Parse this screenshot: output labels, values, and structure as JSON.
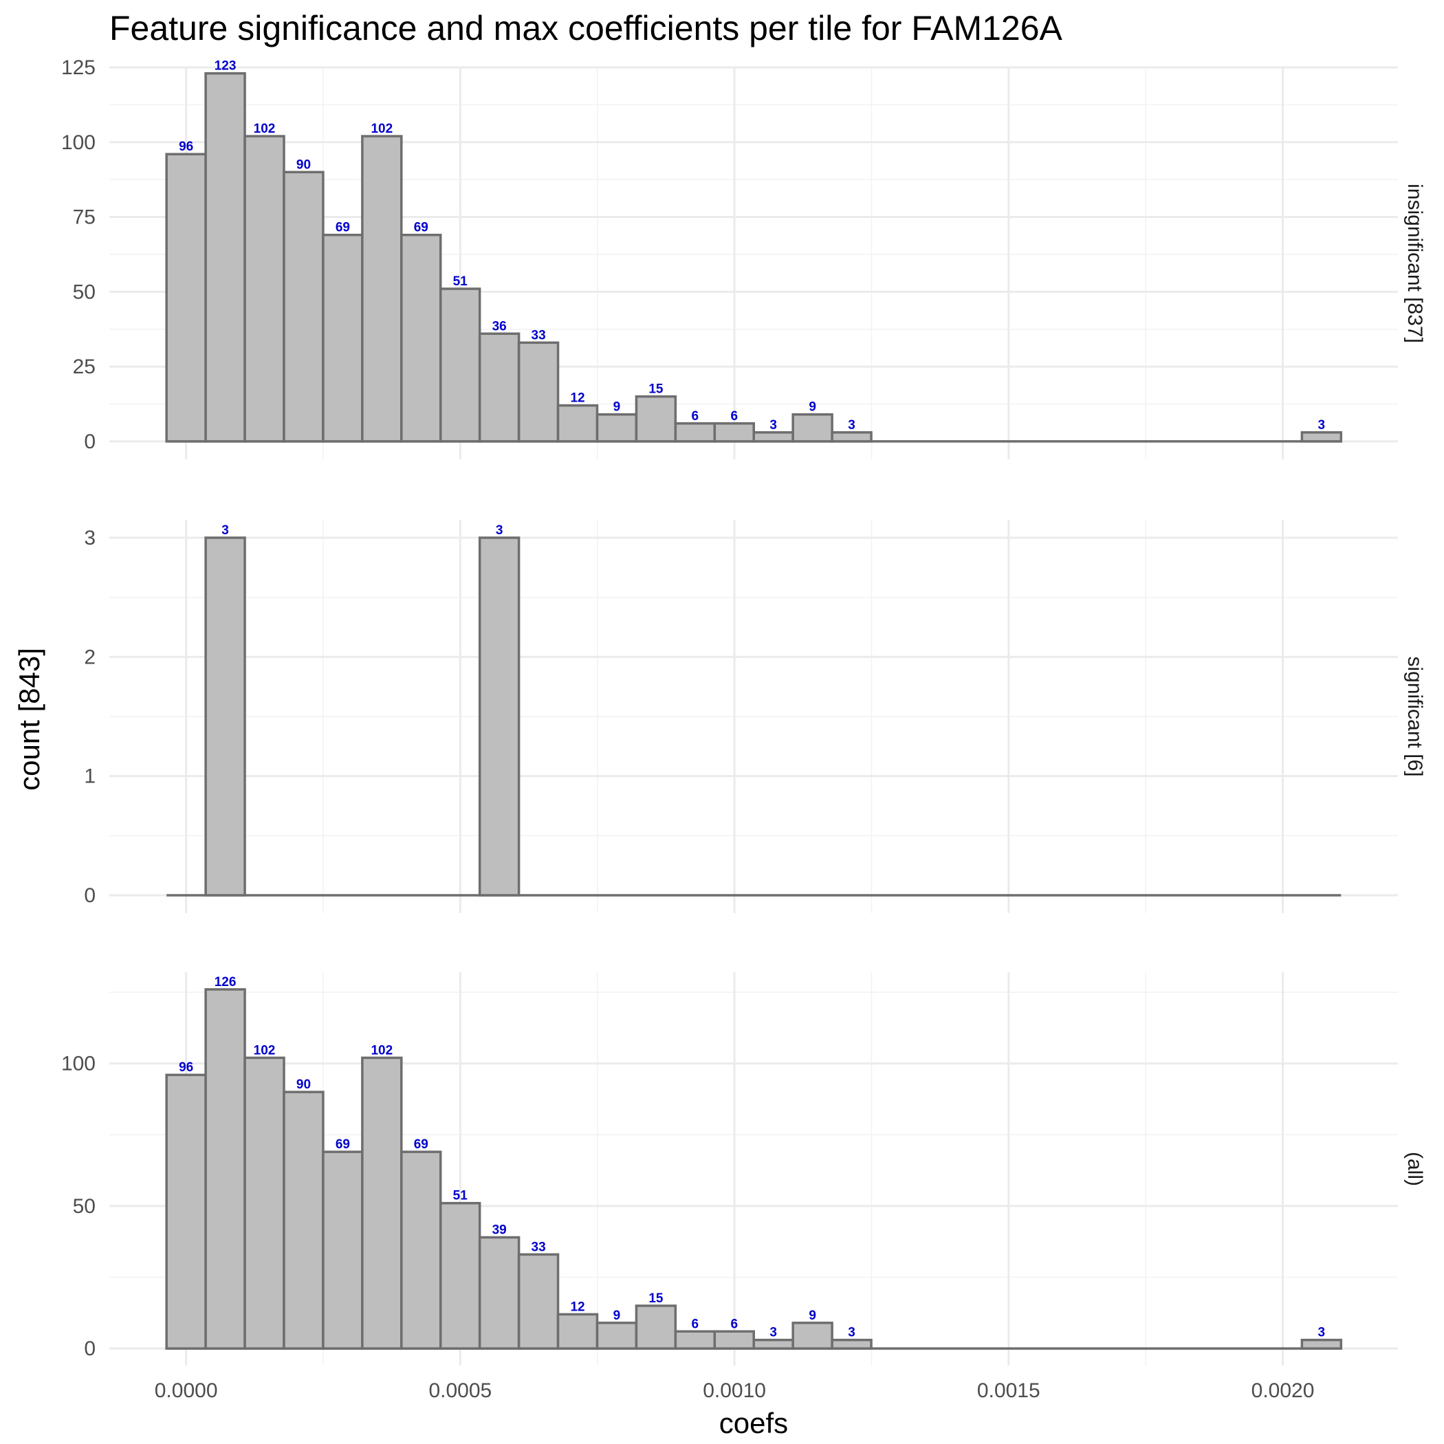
{
  "chart_data": {
    "type": "bar",
    "title": "Feature significance and max coefficients per tile for FAM126A",
    "xlabel": "coefs",
    "ylabel": "count [843]",
    "x_ticks": [
      "0.0000",
      "0.0005",
      "0.0010",
      "0.0015",
      "0.0020"
    ],
    "x_tick_values": [
      0,
      0.0005,
      0.001,
      0.0015,
      0.002
    ],
    "xlim": [
      -0.00014,
      0.00221
    ],
    "bin_width": 7.14e-05,
    "bin_start": -3.57e-05,
    "grid": true,
    "label_color": "#0000cc",
    "bar_fill": "#bebebe",
    "bar_stroke": "#6e6e6e",
    "panels": [
      {
        "strip_label": "insignificant [837]",
        "ylim": [
          -6,
          125
        ],
        "y_ticks": [
          0,
          25,
          50,
          75,
          100,
          125
        ],
        "y_tick_labels": [
          "0",
          "25",
          "50",
          "75",
          "100",
          "125"
        ],
        "y_minor": [
          12.5,
          37.5,
          62.5,
          87.5,
          112.5
        ],
        "bins": [
          {
            "index": 0,
            "value": 96,
            "label": "96"
          },
          {
            "index": 1,
            "value": 123,
            "label": "123"
          },
          {
            "index": 2,
            "value": 102,
            "label": "102"
          },
          {
            "index": 3,
            "value": 90,
            "label": "90"
          },
          {
            "index": 4,
            "value": 69,
            "label": "69"
          },
          {
            "index": 5,
            "value": 102,
            "label": "102"
          },
          {
            "index": 6,
            "value": 69,
            "label": "69"
          },
          {
            "index": 7,
            "value": 51,
            "label": "51"
          },
          {
            "index": 8,
            "value": 36,
            "label": "36"
          },
          {
            "index": 9,
            "value": 33,
            "label": "33"
          },
          {
            "index": 10,
            "value": 12,
            "label": "12"
          },
          {
            "index": 11,
            "value": 9,
            "label": "9"
          },
          {
            "index": 12,
            "value": 15,
            "label": "15"
          },
          {
            "index": 13,
            "value": 6,
            "label": "6"
          },
          {
            "index": 14,
            "value": 6,
            "label": "6"
          },
          {
            "index": 15,
            "value": 3,
            "label": "3"
          },
          {
            "index": 16,
            "value": 9,
            "label": "9"
          },
          {
            "index": 17,
            "value": 3,
            "label": "3"
          },
          {
            "index": 29,
            "value": 3,
            "label": "3"
          }
        ]
      },
      {
        "strip_label": "significant [6]",
        "ylim": [
          -0.15,
          3.15
        ],
        "y_ticks": [
          0,
          1,
          2,
          3
        ],
        "y_tick_labels": [
          "0",
          "1",
          "2",
          "3"
        ],
        "y_minor": [
          0.5,
          1.5,
          2.5
        ],
        "bins": [
          {
            "index": 1,
            "value": 3,
            "label": "3"
          },
          {
            "index": 8,
            "value": 3,
            "label": "3"
          }
        ]
      },
      {
        "strip_label": "(all)",
        "ylim": [
          -6,
          132
        ],
        "y_ticks": [
          0,
          50,
          100
        ],
        "y_tick_labels": [
          "0",
          "50",
          "100"
        ],
        "y_minor": [
          25,
          75,
          125
        ],
        "bins": [
          {
            "index": 0,
            "value": 96,
            "label": "96"
          },
          {
            "index": 1,
            "value": 126,
            "label": "126"
          },
          {
            "index": 2,
            "value": 102,
            "label": "102"
          },
          {
            "index": 3,
            "value": 90,
            "label": "90"
          },
          {
            "index": 4,
            "value": 69,
            "label": "69"
          },
          {
            "index": 5,
            "value": 102,
            "label": "102"
          },
          {
            "index": 6,
            "value": 69,
            "label": "69"
          },
          {
            "index": 7,
            "value": 51,
            "label": "51"
          },
          {
            "index": 8,
            "value": 39,
            "label": "39"
          },
          {
            "index": 9,
            "value": 33,
            "label": "33"
          },
          {
            "index": 10,
            "value": 12,
            "label": "12"
          },
          {
            "index": 11,
            "value": 9,
            "label": "9"
          },
          {
            "index": 12,
            "value": 15,
            "label": "15"
          },
          {
            "index": 13,
            "value": 6,
            "label": "6"
          },
          {
            "index": 14,
            "value": 6,
            "label": "6"
          },
          {
            "index": 15,
            "value": 3,
            "label": "3"
          },
          {
            "index": 16,
            "value": 9,
            "label": "9"
          },
          {
            "index": 17,
            "value": 3,
            "label": "3"
          },
          {
            "index": 29,
            "value": 3,
            "label": "3"
          }
        ]
      }
    ],
    "total_bins": 30
  }
}
